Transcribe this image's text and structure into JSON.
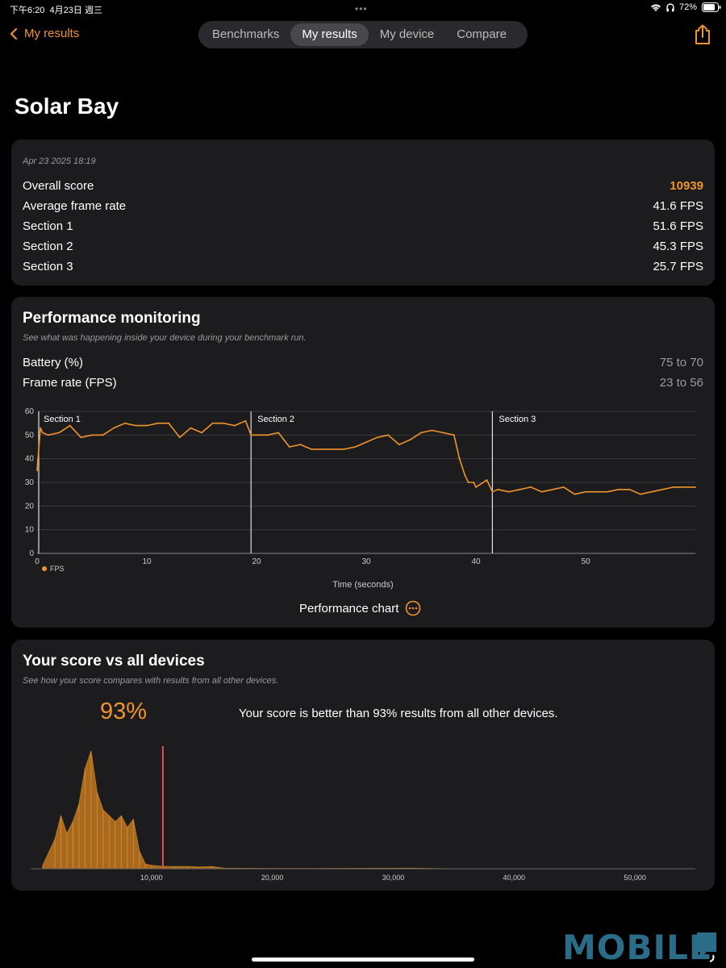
{
  "status_bar": {
    "time": "下午6:20",
    "date": "4月23日 週三",
    "battery": "72%"
  },
  "nav": {
    "back_label": "My results",
    "tabs": [
      {
        "label": "Benchmarks"
      },
      {
        "label": "My results"
      },
      {
        "label": "My device"
      },
      {
        "label": "Compare"
      }
    ]
  },
  "page": {
    "title": "Solar Bay"
  },
  "summary": {
    "timestamp": "Apr 23 2025 18:19",
    "rows": [
      {
        "label": "Overall score",
        "value": "10939"
      },
      {
        "label": "Average frame rate",
        "value": "41.6 FPS"
      },
      {
        "label": "Section 1",
        "value": "51.6 FPS"
      },
      {
        "label": "Section 2",
        "value": "45.3 FPS"
      },
      {
        "label": "Section 3",
        "value": "25.7 FPS"
      }
    ]
  },
  "monitoring": {
    "title": "Performance monitoring",
    "subtitle": "See what was happening inside your device during your benchmark run.",
    "battery_label": "Battery (%)",
    "battery_value": "75 to 70",
    "fps_label": "Frame rate (FPS)",
    "fps_value": "23 to 56",
    "chart_button": "Performance chart"
  },
  "chart_data": [
    {
      "type": "line",
      "xlabel": "Time (seconds)",
      "ylabel": "",
      "xlim": [
        0,
        60
      ],
      "ylim": [
        0,
        60
      ],
      "x_ticks": [
        0,
        10,
        20,
        30,
        40,
        50
      ],
      "y_ticks": [
        0,
        10,
        20,
        30,
        40,
        50,
        60
      ],
      "legend": "FPS",
      "sections": [
        {
          "label": "Section 1",
          "start": 0
        },
        {
          "label": "Section 2",
          "start": 19.5
        },
        {
          "label": "Section 3",
          "start": 41.5
        }
      ],
      "series": [
        {
          "name": "FPS",
          "x": [
            0,
            0.3,
            0.5,
            1,
            2,
            3,
            4,
            5,
            6,
            7,
            8,
            9,
            10,
            11,
            12,
            13,
            14,
            15,
            16,
            17,
            18,
            19,
            19.5,
            20,
            21,
            22,
            23,
            24,
            25,
            26,
            27,
            28,
            29,
            30,
            31,
            32,
            33,
            34,
            35,
            36,
            37,
            38,
            38.5,
            39,
            39.3,
            39.8,
            40,
            41,
            41.5,
            42,
            43,
            44,
            45,
            46,
            47,
            48,
            49,
            50,
            51,
            52,
            53,
            54,
            55,
            56,
            57,
            58,
            59,
            60
          ],
          "y": [
            35,
            53,
            51,
            50,
            51,
            54,
            49,
            50,
            50,
            53,
            55,
            54,
            54,
            55,
            55,
            49,
            53,
            51,
            55,
            55,
            54,
            56,
            50,
            50,
            50,
            51,
            45,
            46,
            44,
            44,
            44,
            44,
            45,
            47,
            49,
            50,
            46,
            48,
            51,
            52,
            51,
            50,
            40,
            33,
            30,
            30,
            28,
            31,
            26,
            27,
            26,
            27,
            28,
            26,
            27,
            28,
            25,
            26,
            26,
            26,
            27,
            27,
            25,
            26,
            27,
            28,
            28,
            28
          ]
        }
      ]
    },
    {
      "type": "area",
      "title": "Your score vs all devices",
      "xlabel": "",
      "ylabel": "",
      "xlim": [
        0,
        55000
      ],
      "x_tick_labels": [
        "10,000",
        "20,000",
        "30,000",
        "40,000",
        "50,000"
      ],
      "x_ticks": [
        10000,
        20000,
        30000,
        40000,
        50000
      ],
      "marker": 10939,
      "series": [
        {
          "name": "Devices",
          "x": [
            1000,
            2000,
            2500,
            3000,
            3500,
            4000,
            4500,
            5000,
            5500,
            6000,
            6500,
            7000,
            7500,
            8000,
            8500,
            9000,
            9500,
            10000,
            11000,
            12000,
            13000,
            14000,
            15000,
            16000,
            20000,
            31500,
            35000,
            55000
          ],
          "y": [
            0.03,
            0.25,
            0.45,
            0.3,
            0.4,
            0.55,
            0.85,
            1.0,
            0.65,
            0.5,
            0.45,
            0.4,
            0.45,
            0.35,
            0.42,
            0.15,
            0.04,
            0.03,
            0.02,
            0.02,
            0.02,
            0.015,
            0.02,
            0.005,
            0.002,
            0.005,
            0,
            0
          ]
        }
      ]
    }
  ],
  "comparison": {
    "title": "Your score vs all devices",
    "subtitle": "See how your score compares with results from all other devices.",
    "percent": "93%",
    "statement": "Your score is better than 93% results from all other devices."
  },
  "watermark": "MOBILE"
}
